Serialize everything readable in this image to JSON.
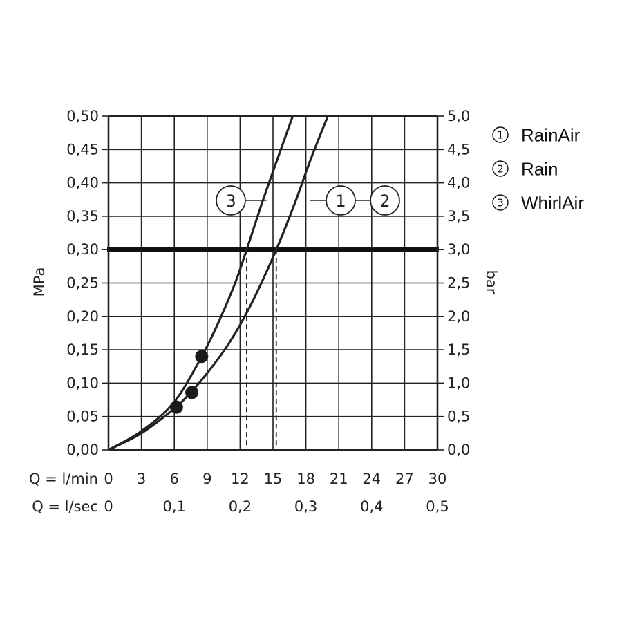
{
  "chart_data": {
    "type": "line",
    "left_axis": {
      "label": "MPa",
      "ylim": [
        0,
        0.5
      ],
      "ticks": [
        0,
        0.05,
        0.1,
        0.15,
        0.2,
        0.25,
        0.3,
        0.35,
        0.4,
        0.45,
        0.5
      ],
      "tick_labels": [
        "0,00",
        "0,05",
        "0,10",
        "0,15",
        "0,20",
        "0,25",
        "0,30",
        "0,35",
        "0,40",
        "0,45",
        "0,50"
      ]
    },
    "right_axis": {
      "label": "bar",
      "ylim": [
        0,
        5
      ],
      "tick_labels": [
        "0,0",
        "0,5",
        "1,0",
        "1,5",
        "2,0",
        "2,5",
        "3,0",
        "3,5",
        "4,0",
        "4,5",
        "5,0"
      ]
    },
    "x_axis": {
      "label": "Q = l/min",
      "xlim": [
        0,
        30
      ],
      "ticks": [
        0,
        3,
        6,
        9,
        12,
        15,
        18,
        21,
        24,
        27,
        30
      ],
      "tick_labels": [
        "0",
        "3",
        "6",
        "9",
        "12",
        "15",
        "18",
        "21",
        "24",
        "27",
        "30"
      ]
    },
    "x_axis_secondary": {
      "label": "Q = l/sec",
      "ticks_lmin": [
        0,
        6,
        12,
        18,
        24,
        30
      ],
      "tick_labels": [
        "0",
        "0,1",
        "0,2",
        "0,3",
        "0,4",
        "0,5"
      ]
    },
    "grid": true,
    "reference_line": {
      "y": 0.3
    },
    "series": [
      {
        "key": "3",
        "points": [
          [
            0,
            0
          ],
          [
            3,
            0.028
          ],
          [
            6,
            0.072
          ],
          [
            8.5,
            0.14
          ],
          [
            10,
            0.19
          ],
          [
            11.5,
            0.248
          ],
          [
            12.6,
            0.3
          ],
          [
            14,
            0.37
          ],
          [
            15.5,
            0.44
          ],
          [
            16.8,
            0.5
          ]
        ],
        "markers": [
          [
            8.5,
            0.14
          ]
        ],
        "drop_x": 12.6
      },
      {
        "key": "1_2",
        "points": [
          [
            0,
            0
          ],
          [
            3,
            0.025
          ],
          [
            6,
            0.062
          ],
          [
            7.5,
            0.086
          ],
          [
            9,
            0.115
          ],
          [
            11,
            0.16
          ],
          [
            13,
            0.218
          ],
          [
            15.3,
            0.3
          ],
          [
            17,
            0.37
          ],
          [
            18.5,
            0.438
          ],
          [
            20,
            0.5
          ]
        ],
        "markers": [
          [
            6.2,
            0.064
          ],
          [
            7.6,
            0.086
          ]
        ],
        "drop_x": 15.3
      }
    ],
    "callouts": [
      {
        "text": "3",
        "line_to_x": 14.4
      },
      {
        "text": "1",
        "line_to_x": 18.4
      },
      {
        "text": "2"
      }
    ],
    "legend": {
      "placement": "top-right",
      "items": [
        {
          "num": "1",
          "label": "RainAir"
        },
        {
          "num": "2",
          "label": "Rain"
        },
        {
          "num": "3",
          "label": "WhirlAir"
        }
      ]
    }
  }
}
